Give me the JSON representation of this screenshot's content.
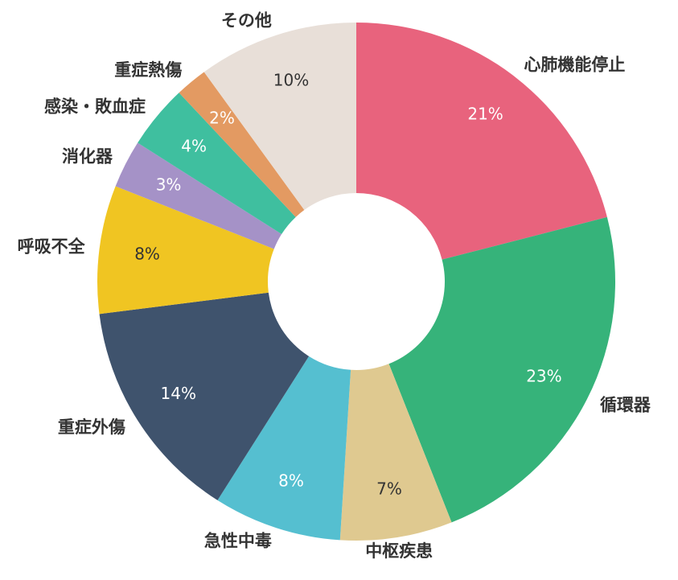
{
  "chart_data": {
    "type": "donut",
    "categories": [
      "心肺機能停止",
      "循環器",
      "中枢疾患",
      "急性中毒",
      "重症外傷",
      "呼吸不全",
      "消化器",
      "感染・敗血症",
      "重症熱傷",
      "その他"
    ],
    "values": [
      21,
      23,
      7,
      8,
      14,
      8,
      3,
      4,
      2,
      10
    ],
    "value_labels": [
      "21%",
      "23%",
      "7%",
      "8%",
      "14%",
      "8%",
      "3%",
      "4%",
      "2%",
      "10%"
    ],
    "colors": [
      "#e8637d",
      "#36b37a",
      "#dfc990",
      "#55bfd0",
      "#3f536d",
      "#f0c522",
      "#a592c7",
      "#3fbf9f",
      "#e39a62",
      "#e8dfd8"
    ]
  }
}
